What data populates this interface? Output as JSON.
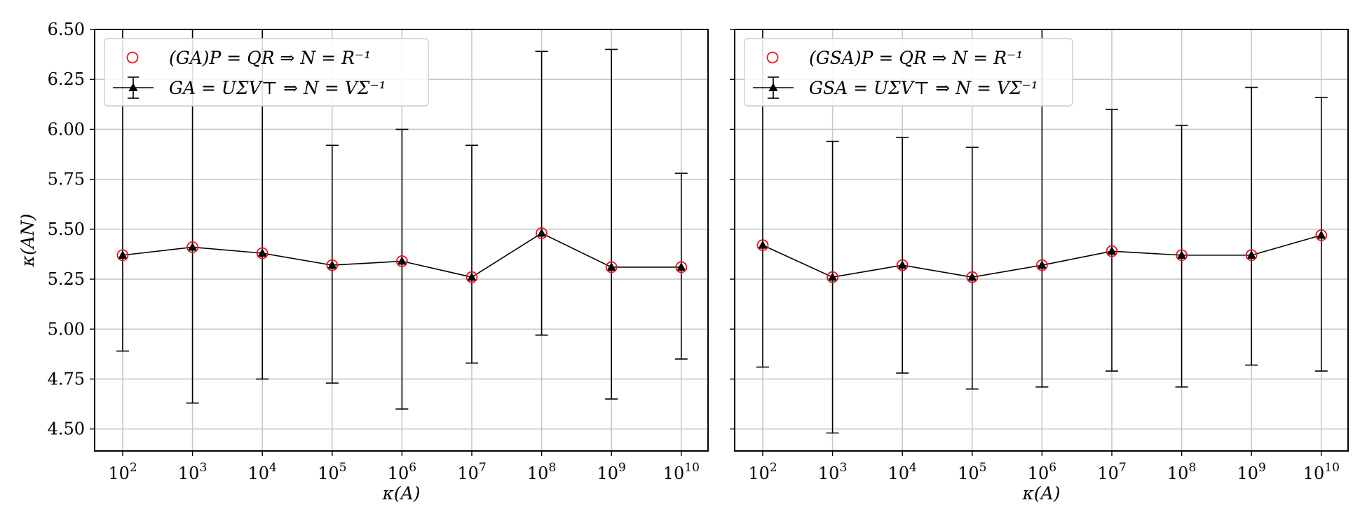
{
  "chart_data": [
    {
      "type": "scatter",
      "panel": "left",
      "xlabel": "κ(A)",
      "ylabel": "κ(AN)",
      "x_tick_base": "10",
      "x_exponents": [
        "2",
        "3",
        "4",
        "5",
        "6",
        "7",
        "8",
        "9",
        "10"
      ],
      "y_ticks": [
        "4.50",
        "4.75",
        "5.00",
        "5.25",
        "5.50",
        "5.75",
        "6.00",
        "6.25",
        "6.50"
      ],
      "ylim": [
        4.39,
        6.5
      ],
      "xscale": "log",
      "grid": true,
      "legend_position": "top-left",
      "series": [
        {
          "name": "(GA)P = QR ⇒ N = R⁻¹",
          "marker": "open-circle",
          "color": "#e8131b",
          "values": [
            5.37,
            5.41,
            5.38,
            5.32,
            5.34,
            5.26,
            5.48,
            5.31,
            5.31
          ]
        },
        {
          "name": "GA = UΣV⊤ ⇒ N = VΣ⁻¹",
          "marker": "filled-triangle-line-errorbar",
          "color": "#000000",
          "values": [
            5.37,
            5.41,
            5.38,
            5.32,
            5.34,
            5.26,
            5.48,
            5.31,
            5.31
          ],
          "err_low": [
            4.89,
            4.63,
            4.75,
            4.73,
            4.6,
            4.83,
            4.97,
            4.65,
            4.85
          ],
          "err_high": [
            6.5,
            6.5,
            6.5,
            5.92,
            6.0,
            5.92,
            6.39,
            6.4,
            5.78
          ]
        }
      ]
    },
    {
      "type": "scatter",
      "panel": "right",
      "xlabel": "κ(A)",
      "ylabel": "",
      "x_tick_base": "10",
      "x_exponents": [
        "2",
        "3",
        "4",
        "5",
        "6",
        "7",
        "8",
        "9",
        "10"
      ],
      "y_ticks": [],
      "ylim": [
        4.39,
        6.5
      ],
      "xscale": "log",
      "grid": true,
      "legend_position": "top-left",
      "series": [
        {
          "name": "(GSA)P = QR ⇒ N = R⁻¹",
          "marker": "open-circle",
          "color": "#e8131b",
          "values": [
            5.42,
            5.26,
            5.32,
            5.26,
            5.32,
            5.39,
            5.37,
            5.37,
            5.47
          ]
        },
        {
          "name": "GSA = UΣV⊤ ⇒ N = VΣ⁻¹",
          "marker": "filled-triangle-line-errorbar",
          "color": "#000000",
          "values": [
            5.42,
            5.26,
            5.32,
            5.26,
            5.32,
            5.39,
            5.37,
            5.37,
            5.47
          ],
          "err_low": [
            4.81,
            4.48,
            4.78,
            4.7,
            4.71,
            4.79,
            4.71,
            4.82,
            4.79
          ],
          "err_high": [
            6.5,
            5.94,
            5.96,
            5.91,
            6.5,
            6.1,
            6.02,
            6.21,
            6.16
          ]
        }
      ]
    }
  ]
}
